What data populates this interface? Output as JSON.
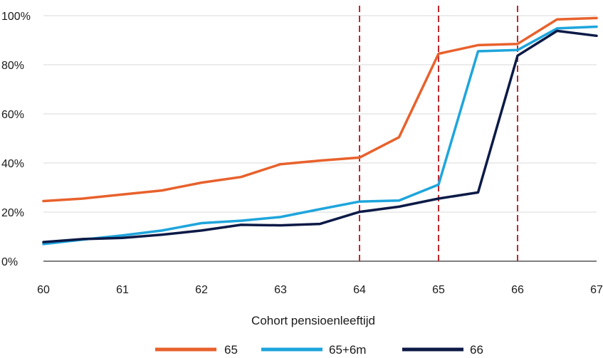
{
  "chart_data": {
    "type": "line",
    "title": "",
    "xlabel": "Cohort pensioenleeftijd",
    "ylabel": "",
    "xlim": [
      60,
      67
    ],
    "ylim": [
      0,
      100
    ],
    "x_ticks": [
      60,
      61,
      62,
      63,
      64,
      65,
      66,
      67
    ],
    "x_tick_labels": [
      "60",
      "61",
      "62",
      "63",
      "64",
      "65",
      "66",
      "67"
    ],
    "y_ticks": [
      0,
      20,
      40,
      60,
      80,
      100
    ],
    "y_tick_labels": [
      "0%",
      "20%",
      "40%",
      "60%",
      "80%",
      "100%"
    ],
    "vertical_reference_lines": [
      64,
      65,
      66
    ],
    "reference_line_color": "#c0272d",
    "legend_position": "bottom-center",
    "x": [
      60,
      60.5,
      61,
      61.5,
      62,
      62.5,
      63,
      63.5,
      64,
      64.5,
      65,
      65.5,
      66,
      66.5,
      67
    ],
    "series": [
      {
        "name": "65",
        "color": "#e8612c",
        "values": [
          24.5,
          25.5,
          27.2,
          28.8,
          32.0,
          34.3,
          39.5,
          41.0,
          42.2,
          50.5,
          84.5,
          88.0,
          88.5,
          98.5,
          99.0
        ]
      },
      {
        "name": "65+6m",
        "color": "#1ea5dc",
        "values": [
          7.0,
          8.8,
          10.5,
          12.5,
          15.5,
          16.5,
          18.0,
          21.2,
          24.3,
          24.7,
          31.2,
          85.5,
          86.0,
          94.8,
          95.5
        ]
      },
      {
        "name": "66",
        "color": "#0c1a47",
        "values": [
          7.8,
          9.0,
          9.5,
          10.8,
          12.5,
          14.8,
          14.6,
          15.2,
          20.1,
          22.2,
          25.5,
          28.0,
          83.7,
          93.8,
          91.8
        ]
      }
    ]
  }
}
